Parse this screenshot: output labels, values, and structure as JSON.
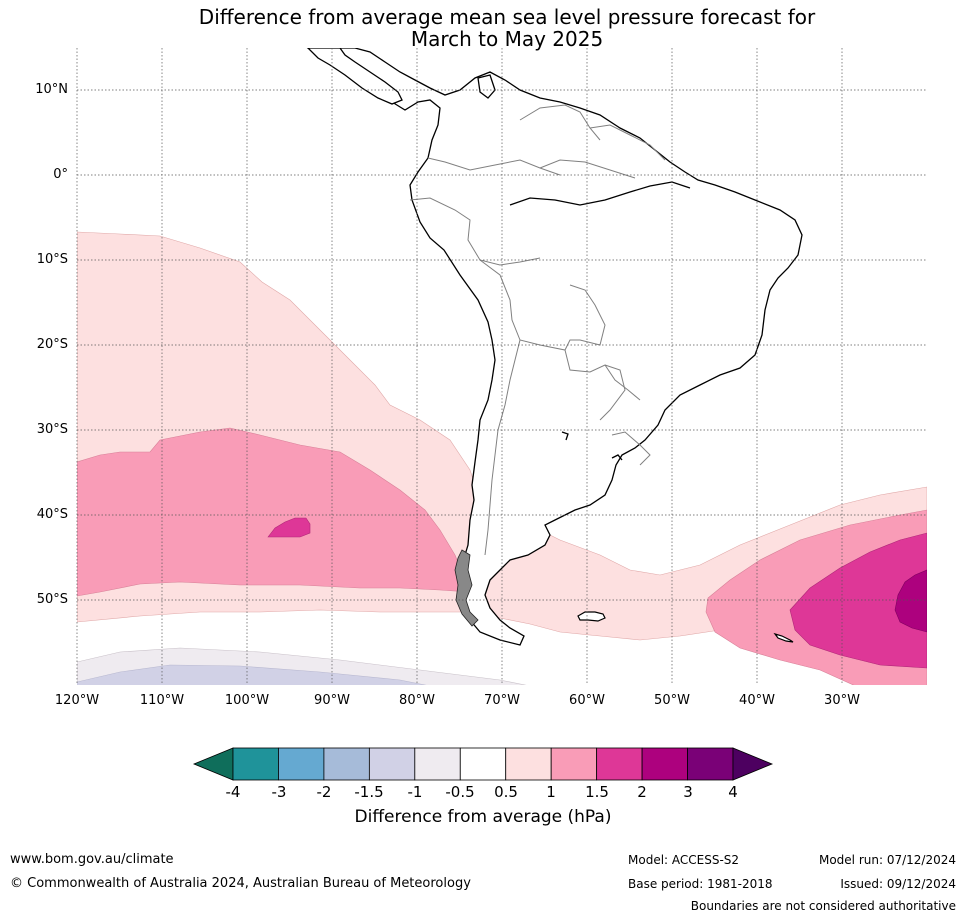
{
  "title_line1": "Difference from average mean sea level pressure forecast for",
  "title_line2": "March to May 2025",
  "latitude_labels": [
    "10°N",
    "0°",
    "10°S",
    "20°S",
    "30°S",
    "40°S",
    "50°S"
  ],
  "longitude_labels": [
    "120°W",
    "110°W",
    "100°W",
    "90°W",
    "80°W",
    "70°W",
    "60°W",
    "50°W",
    "40°W",
    "30°W"
  ],
  "colorbar": {
    "title": "Difference from average (hPa)",
    "tick_labels": [
      "-4",
      "-3",
      "-2",
      "-1.5",
      "-1",
      "-0.5",
      "0.5",
      "1",
      "1.5",
      "2",
      "3",
      "4"
    ],
    "colors": [
      "#0f6e5b",
      "#1f939a",
      "#65a9d1",
      "#a6bbd9",
      "#d1d1e6",
      "#efebf0",
      "#ffffff",
      "#fde0e0",
      "#f99cb7",
      "#de3797",
      "#ad017e",
      "#7a0177",
      "#4d0060"
    ]
  },
  "footer": {
    "website": "www.bom.gov.au/climate",
    "copyright": "© Commonwealth of Australia 2024, Australian Bureau of Meteorology",
    "model": "Model: ACCESS-S2",
    "base_period": "Base period: 1981-2018",
    "model_run": "Model run: 07/12/2024",
    "issued": "Issued: 09/12/2024",
    "disclaimer": "Boundaries are not considered authoritative"
  }
}
